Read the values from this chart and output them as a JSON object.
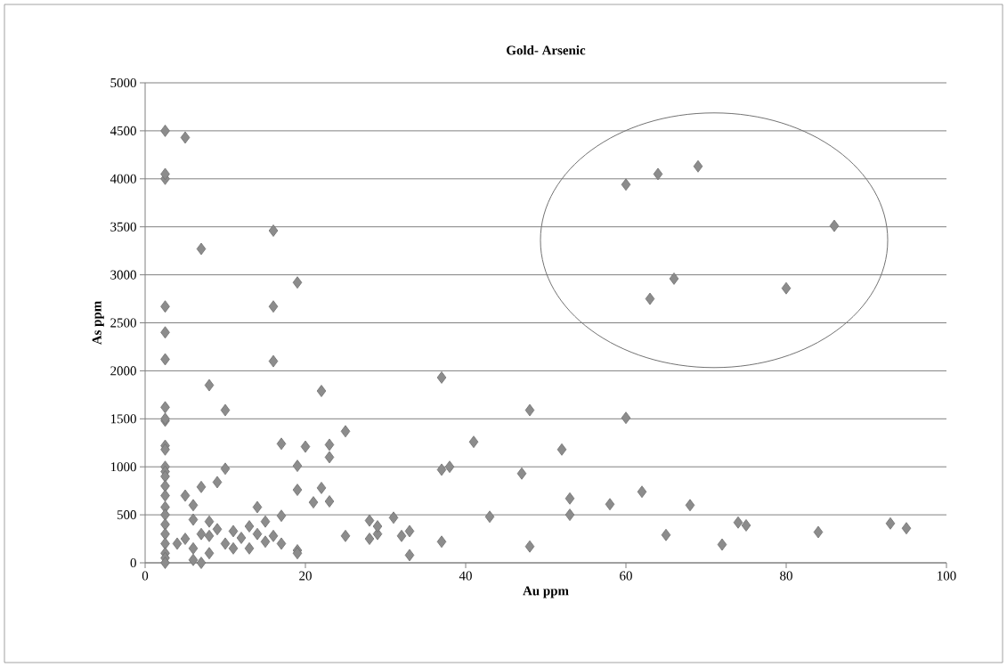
{
  "chart_data": {
    "type": "scatter",
    "title": "Gold- Arsenic",
    "xlabel": "Au ppm",
    "ylabel": "As ppm",
    "xlim": [
      0,
      100
    ],
    "xticks": [
      0,
      20,
      40,
      60,
      80,
      100
    ],
    "ylim": [
      0,
      5000
    ],
    "yticks": [
      0,
      500,
      1000,
      1500,
      2000,
      2500,
      3000,
      3500,
      4000,
      4500,
      5000
    ],
    "grid": "y",
    "marker": "diamond",
    "series": [
      {
        "color": "#8c8c8c",
        "x": [
          2.5,
          2.5,
          2.5,
          2.5,
          2.5,
          2.5,
          2.5,
          2.5,
          2.5,
          2.5,
          2.5,
          2.5,
          2.5,
          2.5,
          2.5,
          2.5,
          2.5,
          2.5,
          2.5,
          2.5,
          2.5,
          2.5,
          2.5,
          2.5,
          5,
          7,
          16,
          19,
          16,
          16,
          8,
          22,
          37,
          10,
          17,
          20,
          23,
          23,
          25,
          19,
          10,
          9,
          7,
          5,
          6,
          22,
          19,
          21,
          23,
          14,
          6,
          8,
          17,
          15,
          13,
          11,
          9,
          12,
          16,
          4,
          6,
          7,
          6,
          8,
          11,
          13,
          15,
          17,
          19,
          19,
          25,
          28,
          28,
          29,
          29,
          31,
          32,
          33,
          33,
          37,
          38,
          37,
          41,
          43,
          47,
          48,
          48,
          52,
          53,
          53,
          58,
          60,
          62,
          65,
          68,
          72,
          74,
          75,
          84,
          93,
          95,
          60,
          64,
          69,
          86,
          63,
          66,
          80,
          5,
          7,
          8,
          10,
          14
        ],
        "values": [
          4500,
          4000,
          4050,
          2670,
          2400,
          2120,
          1620,
          1480,
          1500,
          1220,
          1180,
          1000,
          950,
          900,
          800,
          700,
          580,
          500,
          400,
          300,
          200,
          100,
          50,
          0,
          4430,
          3270,
          3460,
          2920,
          2670,
          2100,
          1850,
          1790,
          1930,
          1590,
          1240,
          1210,
          1230,
          1100,
          1370,
          1010,
          980,
          840,
          790,
          700,
          600,
          780,
          760,
          630,
          640,
          580,
          450,
          430,
          490,
          430,
          380,
          330,
          350,
          260,
          280,
          200,
          150,
          0,
          30,
          100,
          150,
          150,
          220,
          200,
          130,
          100,
          280,
          440,
          250,
          300,
          380,
          470,
          280,
          330,
          80,
          970,
          1000,
          220,
          1260,
          480,
          930,
          1590,
          170,
          1180,
          670,
          500,
          610,
          1510,
          740,
          290,
          600,
          190,
          420,
          390,
          320,
          410,
          360,
          3940,
          4050,
          4130,
          3510,
          2750,
          2960,
          2860,
          250,
          300,
          280,
          200,
          300
        ]
      }
    ]
  }
}
